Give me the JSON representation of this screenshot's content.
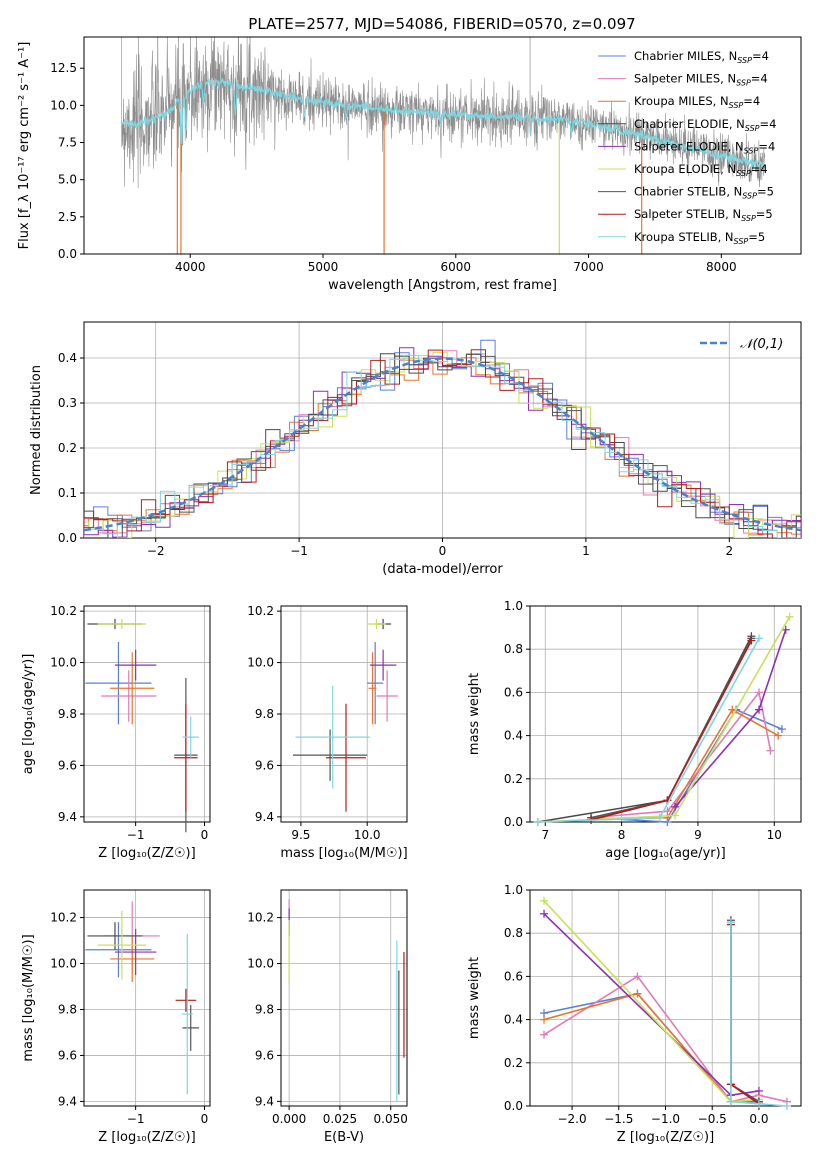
{
  "figure": {
    "title": "PLATE=2577, MJD=54086, FIBERID=0570, z=0.097"
  },
  "models": [
    {
      "name": "Chabrier MILES",
      "nssp": "4",
      "color": "#5b7fd9"
    },
    {
      "name": "Salpeter MILES",
      "nssp": "4",
      "color": "#e07ab8"
    },
    {
      "name": "Kroupa MILES",
      "nssp": "4",
      "color": "#e8762c"
    },
    {
      "name": "Chabrier ELODIE",
      "nssp": "4",
      "color": "#4a4a4a"
    },
    {
      "name": "Salpeter ELODIE",
      "nssp": "4",
      "color": "#8e2fb5"
    },
    {
      "name": "Kroupa ELODIE",
      "nssp": "4",
      "color": "#c8e05a"
    },
    {
      "name": "Chabrier STELIB",
      "nssp": "5",
      "color": "#555555"
    },
    {
      "name": "Salpeter STELIB",
      "nssp": "5",
      "color": "#b01e1e"
    },
    {
      "name": "Kroupa STELIB",
      "nssp": "5",
      "color": "#7fd6e0"
    }
  ],
  "chart_data": [
    {
      "id": "spectrum",
      "type": "line",
      "xlabel": "wavelength [Angstrom, rest frame]",
      "ylabel": "Flux [f_λ 10⁻¹⁷ erg cm⁻² s⁻¹ A⁻¹]",
      "xlim": [
        3200,
        8600
      ],
      "ylim": [
        0,
        14.6
      ],
      "xticks": [
        "4000",
        "5000",
        "6000",
        "7000",
        "8000"
      ],
      "yticks": [
        "0.0",
        "2.5",
        "5.0",
        "7.5",
        "10.0",
        "12.5"
      ],
      "data_color": "#8c8c8c",
      "model_color": "#7fd6e0",
      "continuum": {
        "x": [
          3480,
          3600,
          3750,
          3850,
          3950,
          4000,
          4100,
          4200,
          4400,
          4600,
          4860,
          5000,
          5300,
          5600,
          5900,
          6200,
          6500,
          6800,
          7100,
          7400,
          7700,
          8000,
          8300
        ],
        "y": [
          8.8,
          8.7,
          9.2,
          9.7,
          10.6,
          11.0,
          11.5,
          11.6,
          11.3,
          10.9,
          10.4,
          10.2,
          9.9,
          9.6,
          9.4,
          9.3,
          9.2,
          9.1,
          8.6,
          8.0,
          7.3,
          6.6,
          6.0
        ]
      },
      "absorption_lines": {
        "x": [
          3934,
          3969,
          4102,
          4340,
          4861,
          5175,
          5890,
          6563,
          6870
        ],
        "depth": [
          3.2,
          2.5,
          1.5,
          2.0,
          1.2,
          0.8,
          0.6,
          1.0,
          0.8
        ]
      },
      "spikes": {
        "x": [
          3903,
          3930,
          5460,
          6560,
          6780,
          7400
        ],
        "y": [
          0,
          0,
          0,
          14.6,
          0,
          0
        ]
      }
    },
    {
      "id": "residuals",
      "type": "line",
      "xlabel": "(data-model)/error",
      "ylabel": "Normed distribution",
      "xlim": [
        -2.5,
        2.5
      ],
      "ylim": [
        0,
        0.48
      ],
      "xticks": [
        "−2",
        "−1",
        "0",
        "1",
        "2"
      ],
      "yticks": [
        "0.0",
        "0.1",
        "0.2",
        "0.3",
        "0.4"
      ],
      "legend": {
        "label": "𝒩(0,1)",
        "position": "upper right",
        "color": "#4a82c8"
      },
      "grid": true
    },
    {
      "id": "z-age",
      "type": "scatter",
      "xlabel": "Z [log₁₀(Z/Z☉)]",
      "ylabel": "age  [log₁₀(age/yr)]",
      "xlim": [
        -1.75,
        0.08
      ],
      "ylim": [
        9.38,
        10.22
      ],
      "xticks": [
        -1,
        0
      ],
      "xtick_labels": [
        "−1",
        "0"
      ],
      "yticks": [
        9.4,
        9.6,
        9.8,
        10.0,
        10.2
      ],
      "ytick_labels": [
        "9.4",
        "9.6",
        "9.8",
        "10.0",
        "10.2"
      ],
      "points": [
        {
          "m": 0,
          "x": -1.25,
          "y": 9.92,
          "xerr": 0.48,
          "yerr": 0.16
        },
        {
          "m": 1,
          "x": -1.1,
          "y": 9.87,
          "xerr": 0.4,
          "yerr": 0.1
        },
        {
          "m": 2,
          "x": -1.05,
          "y": 9.9,
          "xerr": 0.32,
          "yerr": 0.14
        },
        {
          "m": 3,
          "x": -1.3,
          "y": 10.15,
          "xerr": 0.4,
          "yerr": 0.02
        },
        {
          "m": 4,
          "x": -1.0,
          "y": 9.99,
          "xerr": 0.3,
          "yerr": 0.06
        },
        {
          "m": 5,
          "x": -1.2,
          "y": 10.15,
          "xerr": 0.35,
          "yerr": 0.02
        },
        {
          "m": 6,
          "x": -0.27,
          "y": 9.64,
          "xerr": 0.17,
          "yerr": 0.3
        },
        {
          "m": 7,
          "x": -0.27,
          "y": 9.63,
          "xerr": 0.17,
          "yerr": 0.21
        },
        {
          "m": 8,
          "x": -0.2,
          "y": 9.71,
          "xerr": 0.12,
          "yerr": 0.08
        }
      ]
    },
    {
      "id": "mass-age",
      "type": "scatter",
      "xlabel": "mass [log₁₀(M/M☉)]",
      "ylabel": "",
      "xlim": [
        9.35,
        10.3
      ],
      "ylim": [
        9.38,
        10.22
      ],
      "xticks": [
        9.5,
        10.0
      ],
      "xtick_labels": [
        "9.5",
        "10.0"
      ],
      "yticks": [
        9.4,
        9.6,
        9.8,
        10.0,
        10.2
      ],
      "ytick_labels": [
        "9.4",
        "9.6",
        "9.8",
        "10.0",
        "10.2"
      ],
      "points": [
        {
          "m": 0,
          "x": 10.06,
          "y": 9.92,
          "xerr": 0.06,
          "yerr": 0.16
        },
        {
          "m": 1,
          "x": 10.15,
          "y": 9.87,
          "xerr": 0.08,
          "yerr": 0.1
        },
        {
          "m": 2,
          "x": 10.04,
          "y": 9.9,
          "xerr": 0.03,
          "yerr": 0.14
        },
        {
          "m": 3,
          "x": 10.12,
          "y": 10.15,
          "xerr": 0.06,
          "yerr": 0.02
        },
        {
          "m": 4,
          "x": 10.12,
          "y": 9.99,
          "xerr": 0.1,
          "yerr": 0.06
        },
        {
          "m": 5,
          "x": 10.07,
          "y": 10.15,
          "xerr": 0.07,
          "yerr": 0.02
        },
        {
          "m": 6,
          "x": 9.72,
          "y": 9.64,
          "xerr": 0.28,
          "yerr": 0.1
        },
        {
          "m": 7,
          "x": 9.84,
          "y": 9.63,
          "xerr": 0.15,
          "yerr": 0.21
        },
        {
          "m": 8,
          "x": 9.74,
          "y": 9.71,
          "xerr": 0.28,
          "yerr": 0.2
        }
      ]
    },
    {
      "id": "age-weight",
      "type": "line",
      "xlabel": "age  [log₁₀(age/yr)]",
      "ylabel": "mass weight",
      "xlim": [
        6.8,
        10.35
      ],
      "ylim": [
        0,
        1.0
      ],
      "xticks": [
        7,
        8,
        9,
        10
      ],
      "xtick_labels": [
        "7",
        "8",
        "9",
        "10"
      ],
      "yticks": [
        0,
        0.2,
        0.4,
        0.6,
        0.8,
        1.0
      ],
      "ytick_labels": [
        "0.0",
        "0.2",
        "0.4",
        "0.6",
        "0.8",
        "1.0"
      ],
      "series": [
        {
          "m": 0,
          "x": [
            7.6,
            8.6,
            9.5,
            10.1
          ],
          "y": [
            0.02,
            0.0,
            0.52,
            0.43
          ]
        },
        {
          "m": 1,
          "x": [
            7.6,
            8.6,
            9.8,
            9.95
          ],
          "y": [
            0.02,
            0.05,
            0.6,
            0.33
          ]
        },
        {
          "m": 2,
          "x": [
            7.6,
            8.6,
            9.45,
            10.05
          ],
          "y": [
            0.01,
            0.02,
            0.52,
            0.4
          ]
        },
        {
          "m": 3,
          "x": [
            6.9,
            8.6,
            9.7
          ],
          "y": [
            0.0,
            0.1,
            0.86
          ]
        },
        {
          "m": 4,
          "x": [
            8.7,
            9.8,
            10.15
          ],
          "y": [
            0.07,
            0.52,
            0.89
          ]
        },
        {
          "m": 5,
          "x": [
            6.9,
            8.7,
            10.2
          ],
          "y": [
            0.0,
            0.03,
            0.95
          ]
        },
        {
          "m": 6,
          "x": [
            7.6,
            8.6,
            9.7
          ],
          "y": [
            0.02,
            0.1,
            0.85
          ]
        },
        {
          "m": 7,
          "x": [
            7.6,
            8.6,
            9.7
          ],
          "y": [
            0.01,
            0.1,
            0.84
          ]
        },
        {
          "m": 8,
          "x": [
            6.9,
            8.5,
            9.8
          ],
          "y": [
            0.0,
            0.02,
            0.85
          ]
        }
      ]
    },
    {
      "id": "z-mass",
      "type": "scatter",
      "xlabel": "Z [log₁₀(Z/Z☉)]",
      "ylabel": "mass [log₁₀(M/M☉)]",
      "xlim": [
        -1.75,
        0.08
      ],
      "ylim": [
        9.38,
        10.32
      ],
      "xticks": [
        -1,
        0
      ],
      "xtick_labels": [
        "−1",
        "0"
      ],
      "yticks": [
        9.4,
        9.6,
        9.8,
        10.0,
        10.2
      ],
      "ytick_labels": [
        "9.4",
        "9.6",
        "9.8",
        "10.0",
        "10.2"
      ],
      "points": [
        {
          "m": 0,
          "x": -1.25,
          "y": 10.06,
          "xerr": 0.48,
          "yerr": 0.12
        },
        {
          "m": 1,
          "x": -1.05,
          "y": 10.12,
          "xerr": 0.4,
          "yerr": 0.15
        },
        {
          "m": 2,
          "x": -1.05,
          "y": 10.02,
          "xerr": 0.32,
          "yerr": 0.1
        },
        {
          "m": 3,
          "x": -1.3,
          "y": 10.12,
          "xerr": 0.4,
          "yerr": 0.06
        },
        {
          "m": 4,
          "x": -1.0,
          "y": 10.05,
          "xerr": 0.3,
          "yerr": 0.1
        },
        {
          "m": 5,
          "x": -1.2,
          "y": 10.08,
          "xerr": 0.35,
          "yerr": 0.15
        },
        {
          "m": 6,
          "x": -0.2,
          "y": 9.72,
          "xerr": 0.12,
          "yerr": 0.1
        },
        {
          "m": 7,
          "x": -0.27,
          "y": 9.84,
          "xerr": 0.15,
          "yerr": 0.05
        },
        {
          "m": 8,
          "x": -0.25,
          "y": 9.78,
          "xerr": 0.08,
          "yerr": 0.35
        }
      ]
    },
    {
      "id": "ebv-mass",
      "type": "scatter",
      "xlabel": "E(B-V)",
      "ylabel": "",
      "xlim": [
        -0.004,
        0.058
      ],
      "ylim": [
        9.38,
        10.32
      ],
      "xticks": [
        0.0,
        0.025,
        0.05
      ],
      "xtick_labels": [
        "0.000",
        "0.025",
        "0.050"
      ],
      "yticks": [
        9.4,
        9.6,
        9.8,
        10.0,
        10.2
      ],
      "ytick_labels": [
        "9.4",
        "9.6",
        "9.8",
        "10.0",
        "10.2"
      ],
      "points": [
        {
          "m": 1,
          "x": 0.0,
          "y": 10.2,
          "xerr": 0.0,
          "yerr": 0.08
        },
        {
          "m": 4,
          "x": 0.0,
          "y": 10.18,
          "xerr": 0.0,
          "yerr": 0.06
        },
        {
          "m": 5,
          "x": 0.0,
          "y": 10.05,
          "xerr": 0.0,
          "yerr": 0.14
        },
        {
          "m": 8,
          "x": 0.053,
          "y": 9.75,
          "xerr": 0.0,
          "yerr": 0.35
        },
        {
          "m": 7,
          "x": 0.0565,
          "y": 9.82,
          "xerr": 0.0,
          "yerr": 0.23
        },
        {
          "m": 6,
          "x": 0.054,
          "y": 9.7,
          "xerr": 0.0,
          "yerr": 0.27
        }
      ]
    },
    {
      "id": "z-weight",
      "type": "line",
      "xlabel": "Z [log₁₀(Z/Z☉)]",
      "ylabel": "mass weight",
      "xlim": [
        -2.45,
        0.45
      ],
      "ylim": [
        0,
        1.0
      ],
      "xticks": [
        -2.0,
        -1.5,
        -1.0,
        -0.5,
        0.0
      ],
      "xtick_labels": [
        "−2.0",
        "−1.5",
        "−1.0",
        "−0.5",
        "0.0"
      ],
      "yticks": [
        0,
        0.2,
        0.4,
        0.6,
        0.8,
        1.0
      ],
      "ytick_labels": [
        "0.0",
        "0.2",
        "0.4",
        "0.6",
        "0.8",
        "1.0"
      ],
      "series": [
        {
          "m": 0,
          "x": [
            -2.3,
            -1.3,
            -0.3,
            0.0
          ],
          "y": [
            0.43,
            0.52,
            0.02,
            0.02
          ]
        },
        {
          "m": 1,
          "x": [
            -2.3,
            -1.3,
            -0.3,
            0.0,
            0.3
          ],
          "y": [
            0.33,
            0.6,
            0.02,
            0.05,
            0.02
          ]
        },
        {
          "m": 2,
          "x": [
            -2.3,
            -1.3,
            -0.3,
            0.0
          ],
          "y": [
            0.4,
            0.52,
            0.02,
            0.03
          ]
        },
        {
          "m": 3,
          "x": [
            -0.3,
            -0.3,
            0.0
          ],
          "y": [
            0.86,
            0.1,
            0.02
          ]
        },
        {
          "m": 4,
          "x": [
            -2.3,
            -0.3,
            0.0
          ],
          "y": [
            0.89,
            0.05,
            0.07
          ]
        },
        {
          "m": 5,
          "x": [
            -2.3,
            -0.3,
            0.0
          ],
          "y": [
            0.95,
            0.02,
            0.03
          ]
        },
        {
          "m": 6,
          "x": [
            -0.3,
            -0.3,
            0.0
          ],
          "y": [
            0.85,
            0.1,
            0.02
          ]
        },
        {
          "m": 7,
          "x": [
            -0.3,
            -0.3,
            0.0
          ],
          "y": [
            0.84,
            0.1,
            0.01
          ]
        },
        {
          "m": 8,
          "x": [
            -0.3,
            -0.3,
            0.0,
            0.3
          ],
          "y": [
            0.85,
            0.02,
            0.01,
            0.0
          ]
        }
      ]
    }
  ]
}
